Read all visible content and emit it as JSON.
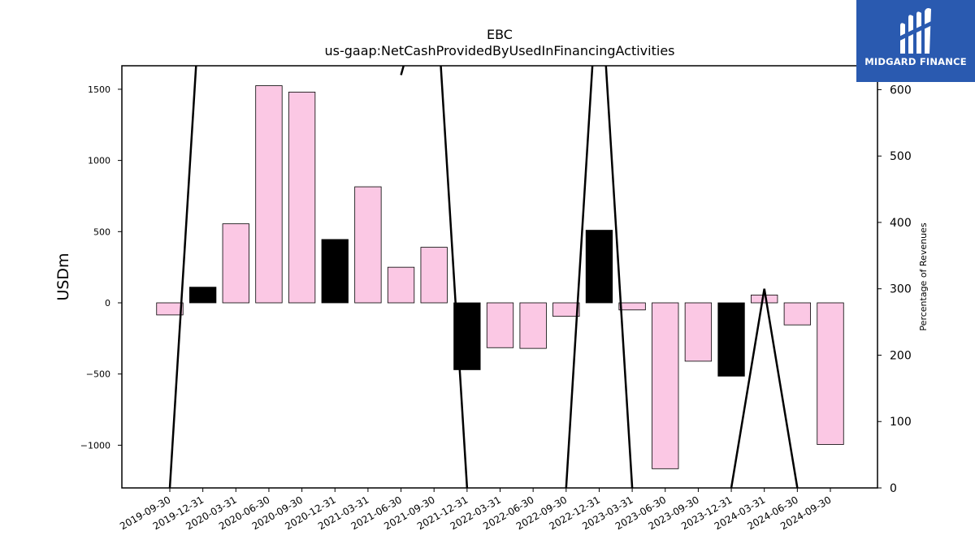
{
  "chart_data": {
    "type": "bar",
    "title": "EBC",
    "subtitle": "us-gaap:NetCashProvidedByUsedInFinancingActivities",
    "ylabel": "USDm",
    "y2label": "Percentage of Revenues",
    "categories": [
      "2019-09-30",
      "2019-12-31",
      "2020-03-31",
      "2020-06-30",
      "2020-09-30",
      "2020-12-31",
      "2021-03-31",
      "2021-06-30",
      "2021-09-30",
      "2021-12-31",
      "2022-03-31",
      "2022-06-30",
      "2022-09-30",
      "2022-12-31",
      "2023-03-31",
      "2023-06-30",
      "2023-09-30",
      "2023-12-31",
      "2024-03-31",
      "2024-06-30",
      "2024-09-30"
    ],
    "values": [
      -85,
      110,
      555,
      1525,
      1480,
      445,
      815,
      250,
      390,
      -470,
      -315,
      -320,
      -95,
      510,
      -50,
      -1165,
      -410,
      -515,
      55,
      -155,
      -995
    ],
    "highlight": [
      false,
      true,
      false,
      false,
      false,
      true,
      false,
      false,
      false,
      true,
      false,
      false,
      false,
      true,
      false,
      false,
      false,
      true,
      false,
      false,
      false
    ],
    "bar_color": "#fbc8e4",
    "highlight_color": "#000000",
    "ylim": [
      -1300,
      1665
    ],
    "yticks": [
      -1000,
      -500,
      0,
      500,
      1000,
      1500
    ],
    "ytick_labels": [
      "−1000",
      "−500",
      "0",
      "500",
      "1000",
      "1500"
    ],
    "y2lim": [
      0,
      636
    ],
    "y2ticks": [
      0,
      100,
      200,
      300,
      400,
      500,
      600
    ],
    "y2tick_labels": [
      "0",
      "100",
      "200",
      "300",
      "400",
      "500",
      "600"
    ],
    "line_series": {
      "name": "Percentage of Revenues",
      "values": [
        0,
        800,
        null,
        null,
        null,
        null,
        null,
        622,
        800,
        0,
        null,
        null,
        0,
        800,
        0,
        null,
        null,
        0,
        300,
        0,
        null
      ]
    }
  },
  "logo": {
    "text": "MIDGARD FINANCE"
  }
}
